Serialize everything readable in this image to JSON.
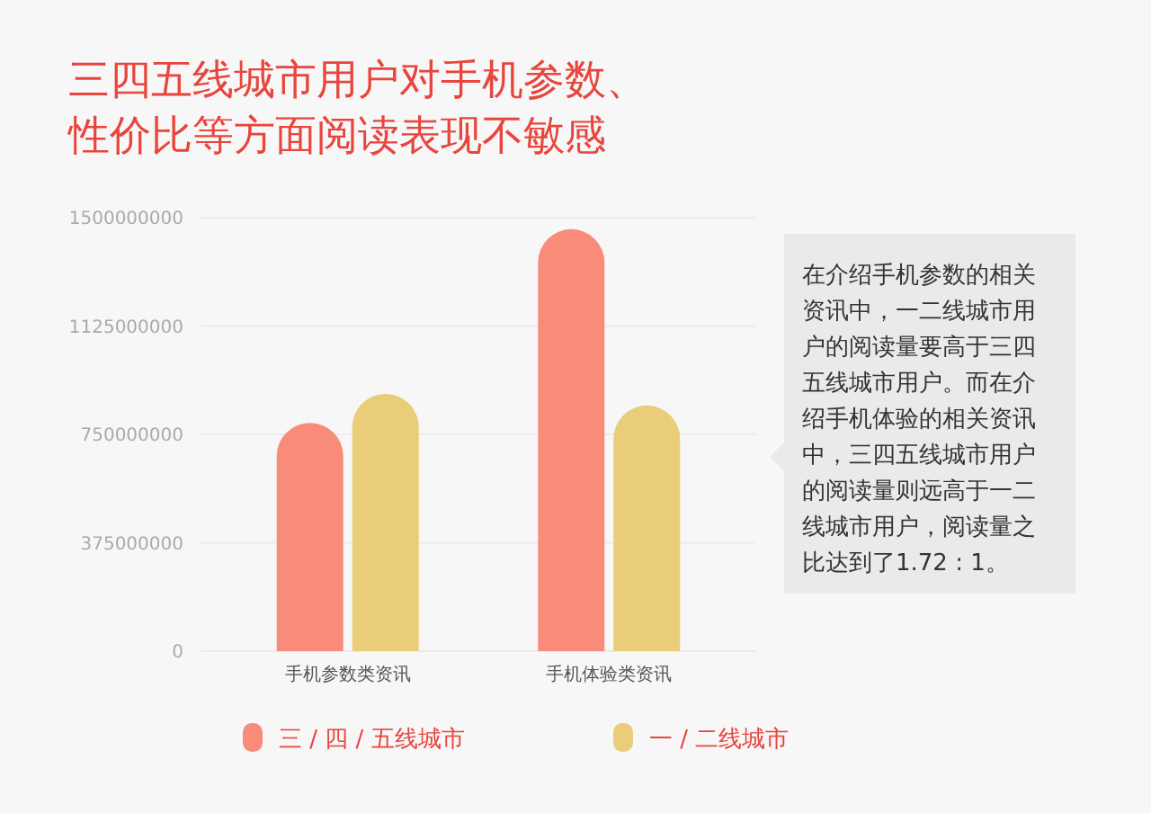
{
  "chart_data": {
    "type": "bar",
    "title": "三四五线城市用户对手机参数、性价比等方面阅读表现不敏感",
    "categories": [
      "手机参数类资讯",
      "手机体验类资讯"
    ],
    "series": [
      {
        "name": "三 / 四 / 五线城市",
        "color": "#f98b7b",
        "values": [
          790000000,
          1460000000
        ]
      },
      {
        "name": "一 / 二线城市",
        "color": "#e9cd78",
        "values": [
          890000000,
          850000000
        ]
      }
    ],
    "ylim": [
      0,
      1500000000
    ],
    "yticks": [
      0,
      375000000,
      750000000,
      1125000000,
      1500000000
    ],
    "grid": "y",
    "legend": "bottom",
    "annotations": [
      "在介绍手机参数的相关资讯中，一二线城市用户的阅读量要高于三四五线城市用户。而在介绍手机体验的相关资讯中，三四五线城市用户的阅读量则远高于一二线城市用户，阅读量之比达到了1.72 : 1。"
    ]
  }
}
